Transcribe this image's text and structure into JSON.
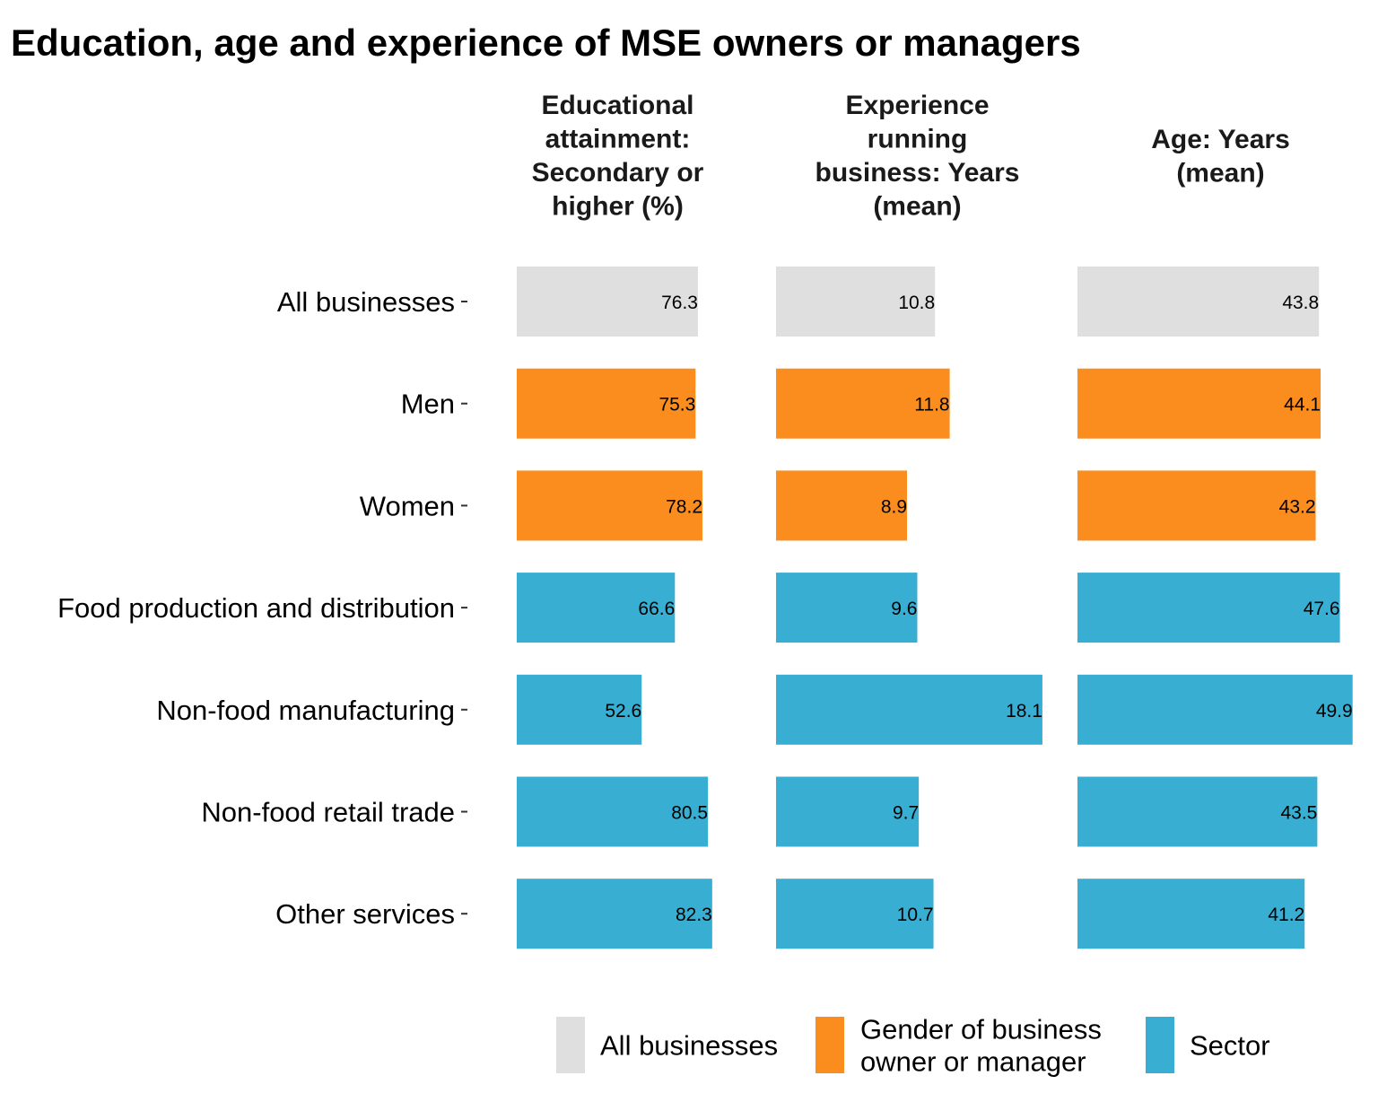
{
  "chart_data": {
    "type": "bar",
    "orientation": "horizontal",
    "title": "Education, age and experience of MSE owners or managers",
    "categories": [
      "All businesses",
      "Men",
      "Women",
      "Food production and distribution",
      "Non-food manufacturing",
      "Non-food retail trade",
      "Other services"
    ],
    "category_groups": [
      "all",
      "gender",
      "gender",
      "sector",
      "sector",
      "sector",
      "sector"
    ],
    "facets": [
      {
        "label_lines": [
          "Educational",
          "attainment:",
          "Secondary or",
          "higher (%)"
        ],
        "values": [
          76.3,
          75.3,
          78.2,
          66.6,
          52.6,
          80.5,
          82.3
        ],
        "value_labels": [
          "76.3",
          "75.3",
          "78.2",
          "66.6",
          "52.6",
          "80.5",
          "82.3"
        ],
        "xlim": [
          0,
          85
        ]
      },
      {
        "label_lines": [
          "Experience",
          "running",
          "business: Years",
          "(mean)"
        ],
        "values": [
          10.8,
          11.8,
          8.9,
          9.6,
          18.1,
          9.7,
          10.7
        ],
        "value_labels": [
          "10.8",
          "11.8",
          "8.9",
          "9.6",
          "18.1",
          "9.7",
          "10.7"
        ],
        "xlim": [
          0,
          19.2
        ]
      },
      {
        "label_lines": [
          "Age: Years",
          "(mean)"
        ],
        "values": [
          43.8,
          44.1,
          43.2,
          47.6,
          49.9,
          43.5,
          41.2
        ],
        "value_labels": [
          "43.8",
          "44.1",
          "43.2",
          "47.6",
          "49.9",
          "43.5",
          "41.2"
        ],
        "xlim": [
          0,
          51.9
        ]
      }
    ],
    "legend": {
      "placement": "bottom",
      "items": [
        {
          "key": "all",
          "lines": [
            "All businesses"
          ],
          "color": "#DFDFDF"
        },
        {
          "key": "gender",
          "lines": [
            "Gender of business",
            "owner or manager"
          ],
          "color": "#FB8C1E"
        },
        {
          "key": "sector",
          "lines": [
            "Sector"
          ],
          "color": "#38AED2"
        }
      ]
    },
    "grid": false
  }
}
